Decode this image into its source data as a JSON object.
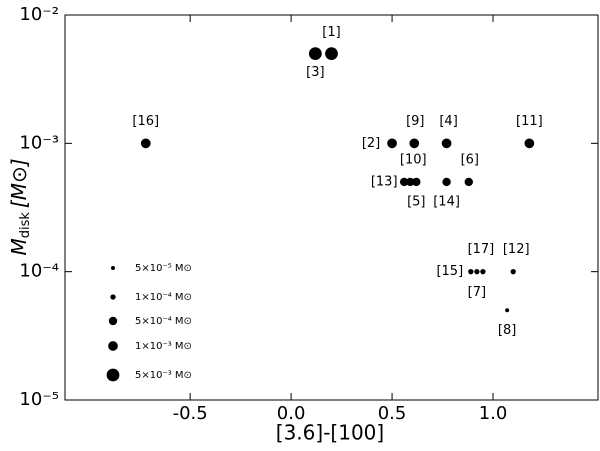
{
  "chart_data": {
    "type": "scatter",
    "xlabel": "[3.6]-[100]",
    "ylabel": {
      "main": "M",
      "sub": "disk",
      "unit": "[M⊙]"
    },
    "xlim": [
      -1.12,
      1.52
    ],
    "ylim": [
      1e-05,
      0.01
    ],
    "log_y": true,
    "xticks": [
      -0.5,
      {
        "value": 0,
        "label": "0.0"
      },
      0.5,
      {
        "value": 1,
        "label": "1.0"
      }
    ],
    "yticks": [
      {
        "value": 1e-05,
        "label": "10⁻⁵"
      },
      {
        "value": 0.0001,
        "label": "10⁻⁴"
      },
      {
        "value": 0.001,
        "label": "10⁻³"
      },
      {
        "value": 0.01,
        "label": "10⁻²"
      }
    ],
    "legend_loc": "lower left",
    "series": [
      {
        "color": "#000000",
        "x": [
          0.2,
          0.12,
          -0.72,
          0.5,
          0.61,
          0.77,
          1.18,
          0.56,
          0.59,
          0.62,
          0.77,
          0.88,
          0.89,
          0.92,
          0.95,
          1.1,
          1.07
        ],
        "values": [
          0.005,
          0.005,
          0.001,
          0.001,
          0.001,
          0.001,
          0.001,
          0.0005,
          0.0005,
          0.0005,
          0.0005,
          0.0005,
          0.0001,
          0.0001,
          0.0001,
          0.0001,
          5e-05
        ],
        "point_labels": [
          "[1]",
          "[3]",
          "[16]",
          "[2]",
          "[9]",
          "[4]",
          "[11]",
          "[13]",
          "[10]",
          "[5]",
          "[14]",
          "[6]",
          "[15]",
          "[7]",
          "[17]",
          "[12]",
          "[8]"
        ]
      }
    ],
    "size_legend": [
      {
        "value": 5e-05,
        "label": "5×10⁻⁵ M⊙"
      },
      {
        "value": 0.0001,
        "label": "1×10⁻⁴ M⊙"
      },
      {
        "value": 0.0005,
        "label": "5×10⁻⁴ M⊙"
      },
      {
        "value": 0.001,
        "label": "1×10⁻³ M⊙"
      },
      {
        "value": 0.005,
        "label": "5×10⁻³ M⊙"
      }
    ]
  }
}
